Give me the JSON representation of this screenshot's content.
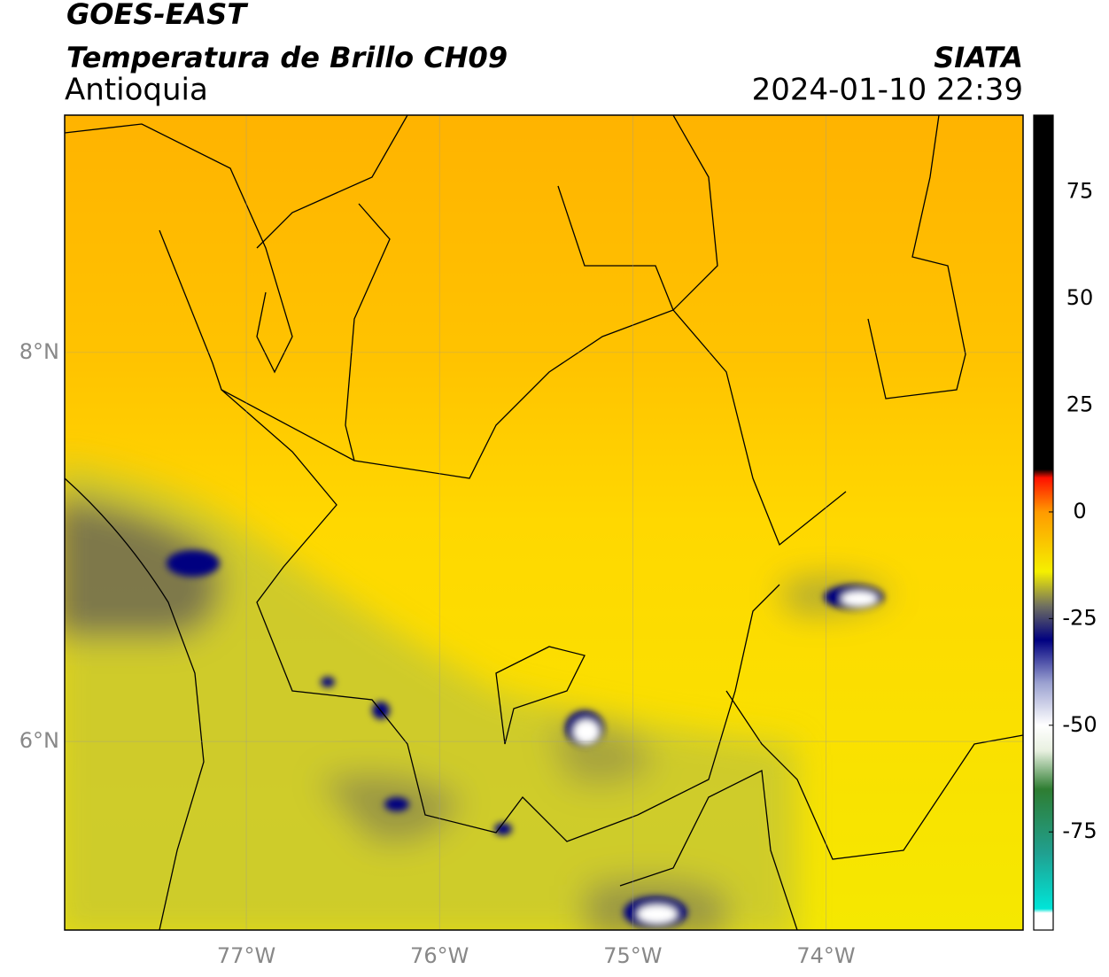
{
  "header": {
    "title": "GOES-EAST",
    "subtitle": "Temperatura de Brillo CH09",
    "region": "Antioquia",
    "source": "SIATA",
    "datetime": "2024-01-10 22:39"
  },
  "map": {
    "xlim": [
      -77.94,
      -72.98
    ],
    "ylim": [
      5.03,
      9.22
    ],
    "xticks": [
      {
        "value": -77,
        "label": "77°W"
      },
      {
        "value": -76,
        "label": "76°W"
      },
      {
        "value": -75,
        "label": "75°W"
      },
      {
        "value": -74,
        "label": "74°W"
      }
    ],
    "yticks": [
      {
        "value": 8,
        "label": "8°N"
      },
      {
        "value": 6,
        "label": "6°N"
      }
    ],
    "grid": true
  },
  "colorbar": {
    "lim": [
      -98,
      93
    ],
    "ticks": [
      75,
      50,
      25,
      0,
      -25,
      -50,
      -75
    ],
    "colors": [
      {
        "value": -98,
        "color": "#ffffff"
      },
      {
        "value": -94,
        "color": "#ffffff"
      },
      {
        "value": -93,
        "color": "#00e5d8"
      },
      {
        "value": -80,
        "color": "#20a090"
      },
      {
        "value": -65,
        "color": "#2e7d32"
      },
      {
        "value": -56,
        "color": "#e8f0e0"
      },
      {
        "value": -50,
        "color": "#ffffff"
      },
      {
        "value": -40,
        "color": "#9aa0d0"
      },
      {
        "value": -30,
        "color": "#000080"
      },
      {
        "value": -22,
        "color": "#707060"
      },
      {
        "value": -14,
        "color": "#f5f000"
      },
      {
        "value": 0,
        "color": "#ff9a00"
      },
      {
        "value": 8,
        "color": "#ff1000"
      },
      {
        "value": 10,
        "color": "#000000"
      },
      {
        "value": 93,
        "color": "#000000"
      }
    ]
  }
}
